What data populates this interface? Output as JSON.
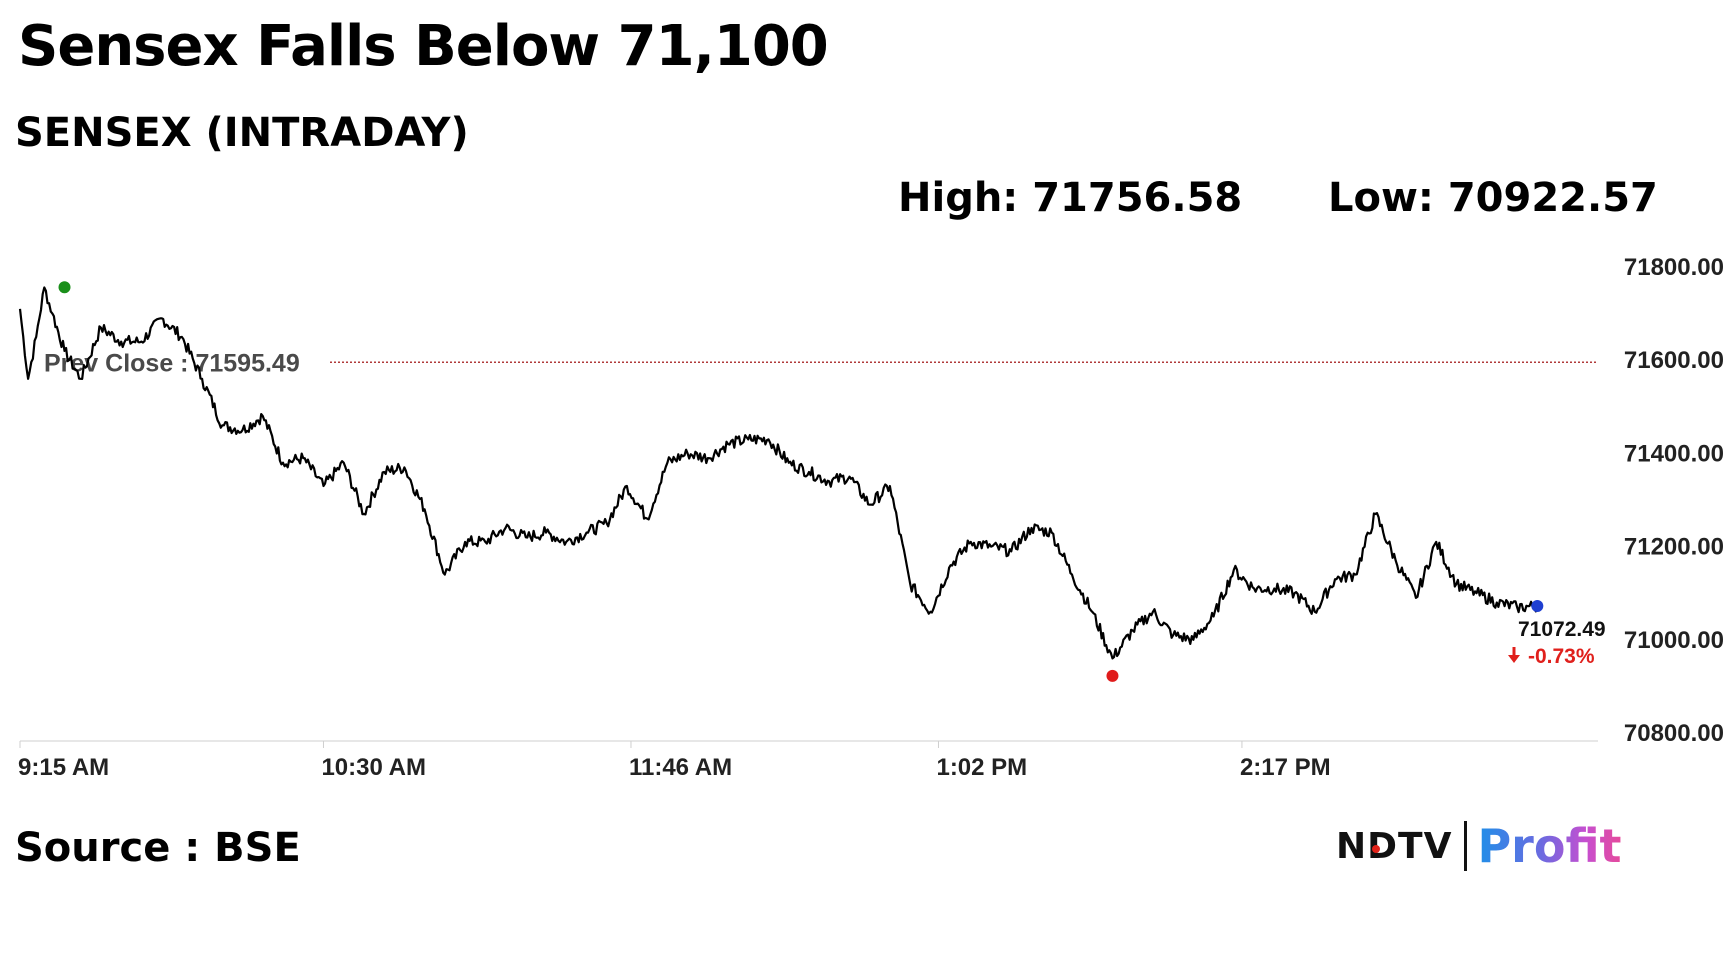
{
  "headline": "Sensex Falls Below 71,100",
  "subtitle": "SENSEX (INTRADAY)",
  "stats": {
    "high_label": "High: 71756.58",
    "low_label": "Low: 70922.57"
  },
  "source": "Source : BSE",
  "logo": {
    "brand_left": "NDTV",
    "brand_right": "Profit"
  },
  "colors": {
    "line": "#000000",
    "prev_close": "#b03a3a",
    "high_marker": "#1a8f1a",
    "low_marker": "#e01b1b",
    "last_marker": "#1f3fd1",
    "change": "#e0201c"
  },
  "chart_data": {
    "type": "line",
    "title": "SENSEX (INTRADAY)",
    "xlabel": "",
    "ylabel": "",
    "ylim": [
      70800,
      71800
    ],
    "y_ticks": [
      "71800.00",
      "71600.00",
      "71400.00",
      "71200.00",
      "71000.00",
      "70800.00"
    ],
    "x_ticks": [
      "9:15 AM",
      "10:30 AM",
      "11:46 AM",
      "1:02 PM",
      "2:17 PM"
    ],
    "prev_close": 71595.49,
    "prev_close_label": "Prev Close : 71595.49",
    "high": 71756.58,
    "low": 70922.57,
    "last": 71072.49,
    "last_label": "71072.49",
    "change_label": "-0.73%",
    "change_icon": "down-arrow-icon",
    "grid": false,
    "series": [
      {
        "x": [
          0,
          2,
          4,
          6,
          8,
          11,
          15,
          20,
          25,
          30,
          35,
          40,
          45,
          50,
          55,
          60,
          65,
          70,
          75,
          80,
          85,
          90,
          95,
          100,
          105,
          110,
          115,
          120,
          125,
          130,
          135,
          140,
          145,
          150,
          155,
          160,
          165,
          170,
          175,
          180,
          185,
          190,
          195,
          200,
          205,
          210,
          215,
          220,
          225,
          230,
          235,
          240,
          245,
          250,
          255,
          260,
          265,
          270,
          275,
          280,
          285,
          290,
          295,
          300,
          305,
          310,
          315,
          320,
          325,
          330,
          335,
          340,
          345,
          350,
          355,
          360,
          365,
          370,
          375
        ],
        "values": [
          71710,
          71560,
          71650,
          71756,
          71700,
          71620,
          71560,
          71670,
          71640,
          71640,
          71690,
          71650,
          71560,
          71460,
          71450,
          71480,
          71380,
          71390,
          71330,
          71380,
          71270,
          71360,
          71370,
          71280,
          71140,
          71210,
          71210,
          71240,
          71220,
          71230,
          71210,
          71230,
          71250,
          71330,
          71260,
          71380,
          71400,
          71390,
          71420,
          71430,
          71430,
          71380,
          71360,
          71340,
          71350,
          71290,
          71330,
          71120,
          71060,
          71160,
          71210,
          71200,
          71190,
          71240,
          71230,
          71140,
          71060,
          70960,
          71020,
          71060,
          71010,
          71000,
          71050,
          71150,
          71110,
          71110,
          71100,
          71060,
          71130,
          71140,
          71270,
          71170,
          71090,
          71210,
          71120,
          71100,
          71080,
          71070,
          71072
        ]
      }
    ],
    "high_time": 11,
    "low_time": 270,
    "last_time": 375
  }
}
